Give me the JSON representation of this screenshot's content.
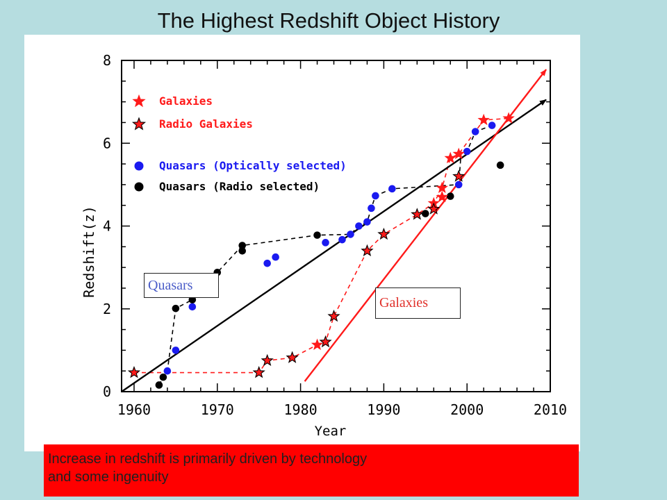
{
  "chart_data": {
    "type": "scatter",
    "title": "The Highest Redshift Object History",
    "xlabel": "Year",
    "ylabel": "Redshift(z)",
    "xlim": [
      1958.5,
      2010
    ],
    "ylim": [
      0,
      8
    ],
    "xticks": [
      1960,
      1970,
      1980,
      1990,
      2000,
      2010
    ],
    "yticks": [
      0,
      2,
      4,
      6,
      8
    ],
    "legend_placement": "top-left",
    "series": [
      {
        "name": "Galaxies",
        "marker": "star",
        "color": "#ff1a1a",
        "points": [
          [
            1960,
            0.46
          ],
          [
            1975,
            0.46
          ],
          [
            1976,
            0.75
          ],
          [
            1979,
            0.82
          ],
          [
            1982,
            1.13
          ],
          [
            1983,
            1.2
          ],
          [
            1984,
            1.82
          ],
          [
            1988,
            3.4
          ],
          [
            1990,
            3.8
          ],
          [
            1994,
            4.28
          ],
          [
            1996,
            4.55
          ],
          [
            1997,
            4.7
          ],
          [
            1997,
            4.92
          ],
          [
            1998,
            5.64
          ],
          [
            1999,
            5.74
          ],
          [
            2002,
            6.56
          ],
          [
            2005,
            6.6
          ]
        ]
      },
      {
        "name": "Radio Galaxies",
        "marker": "star-outlined",
        "color": "#ff1a1a",
        "points": [
          [
            1960,
            0.46
          ],
          [
            1975,
            0.46
          ],
          [
            1976,
            0.75
          ],
          [
            1979,
            0.82
          ],
          [
            1983,
            1.2
          ],
          [
            1984,
            1.82
          ],
          [
            1988,
            3.4
          ],
          [
            1990,
            3.8
          ],
          [
            1994,
            4.28
          ],
          [
            1996,
            4.41
          ],
          [
            1999,
            5.2
          ]
        ]
      },
      {
        "name": "Quasars (Optically selected)",
        "marker": "circle",
        "color": "#1a1af0",
        "points": [
          [
            1964,
            0.5
          ],
          [
            1965,
            1.0
          ],
          [
            1967,
            2.05
          ],
          [
            1976,
            3.1
          ],
          [
            1977,
            3.25
          ],
          [
            1983,
            3.6
          ],
          [
            1985,
            3.67
          ],
          [
            1986,
            3.8
          ],
          [
            1987,
            4.0
          ],
          [
            1988,
            4.1
          ],
          [
            1988.5,
            4.43
          ],
          [
            1989,
            4.73
          ],
          [
            1991,
            4.9
          ],
          [
            1999,
            5.0
          ],
          [
            2000,
            5.8
          ],
          [
            2001,
            6.28
          ],
          [
            2003,
            6.43
          ]
        ]
      },
      {
        "name": "Quasars (Radio selected)",
        "marker": "circle",
        "color": "#000000",
        "points": [
          [
            1963,
            0.16
          ],
          [
            1963.5,
            0.35
          ],
          [
            1965,
            2.01
          ],
          [
            1967,
            2.22
          ],
          [
            1968,
            2.37
          ],
          [
            1970,
            2.88
          ],
          [
            1973,
            3.4
          ],
          [
            1973,
            3.53
          ],
          [
            1982,
            3.78
          ],
          [
            1995,
            4.3
          ],
          [
            1998,
            4.72
          ],
          [
            2004,
            5.47
          ]
        ]
      }
    ],
    "dashed_lines": [
      {
        "color": "#000000",
        "points": [
          [
            1963,
            0.16
          ],
          [
            1963.5,
            0.35
          ],
          [
            1964,
            0.5
          ],
          [
            1965,
            2.01
          ],
          [
            1967,
            2.22
          ],
          [
            1968,
            2.37
          ],
          [
            1970,
            2.88
          ],
          [
            1973,
            3.53
          ],
          [
            1982,
            3.78
          ],
          [
            1986,
            3.8
          ],
          [
            1987,
            4.0
          ],
          [
            1988,
            4.1
          ],
          [
            1988.5,
            4.43
          ],
          [
            1989,
            4.73
          ],
          [
            1991,
            4.9
          ],
          [
            1999,
            5.0
          ],
          [
            1999.3,
            5.8
          ],
          [
            2000,
            5.8
          ],
          [
            2001,
            6.28
          ],
          [
            2003,
            6.43
          ]
        ]
      },
      {
        "color": "#ff1a1a",
        "points": [
          [
            1960,
            0.46
          ],
          [
            1975,
            0.46
          ],
          [
            1976,
            0.75
          ],
          [
            1979,
            0.82
          ],
          [
            1982,
            1.13
          ],
          [
            1983,
            1.2
          ],
          [
            1984,
            1.82
          ],
          [
            1988,
            3.4
          ],
          [
            1990,
            3.8
          ],
          [
            1994,
            4.28
          ],
          [
            1996,
            4.55
          ],
          [
            1997,
            4.92
          ],
          [
            1998,
            5.64
          ],
          [
            1999,
            5.74
          ],
          [
            2002,
            6.56
          ],
          [
            2005,
            6.6
          ]
        ]
      }
    ],
    "trend_arrows": [
      {
        "color": "#000000",
        "from": [
          1958.5,
          0.0
        ],
        "to": [
          2009.5,
          7.05
        ]
      },
      {
        "color": "#ff1a1a",
        "from": [
          1980.5,
          0.25
        ],
        "to": [
          2009.5,
          7.78
        ]
      }
    ],
    "annotations": [
      {
        "text": "Quasars",
        "color": "#4a5cc8"
      },
      {
        "text": "Galaxies",
        "color": "#e0302a"
      }
    ]
  },
  "caption": {
    "line1": "Increase in redshift is primarily driven by technology",
    "line2": "and some ingenuity"
  }
}
